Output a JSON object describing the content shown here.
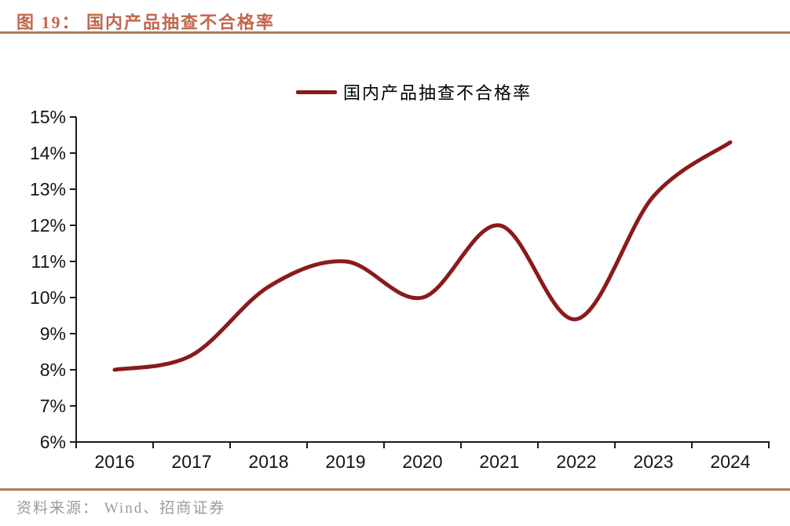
{
  "header": {
    "title": "图 19：  国内产品抽查不合格率"
  },
  "legend": {
    "label": "国内产品抽查不合格率"
  },
  "footer": {
    "source": "资料来源： Wind、招商证券"
  },
  "colors": {
    "accent_title": "#C2674C",
    "rule_brown": "#A87D5F",
    "series_line": "#8B1A1A",
    "axis": "#1a1a1a",
    "source_text": "#9B9B9B"
  },
  "chart_data": {
    "type": "line",
    "title": "国内产品抽查不合格率",
    "categories": [
      "2016",
      "2017",
      "2018",
      "2019",
      "2020",
      "2021",
      "2022",
      "2023",
      "2024"
    ],
    "series": [
      {
        "name": "国内产品抽查不合格率",
        "values": [
          8.0,
          8.4,
          10.3,
          11.0,
          10.0,
          12.0,
          9.4,
          12.8,
          14.3
        ],
        "color": "#8B1A1A",
        "smooth": true,
        "line_width": 5
      }
    ],
    "xlabel": "",
    "ylabel": "",
    "ylim": [
      6,
      15
    ],
    "ytick_step": 1,
    "ytick_format": "percent",
    "grid": false,
    "legend_position": "top-center"
  }
}
